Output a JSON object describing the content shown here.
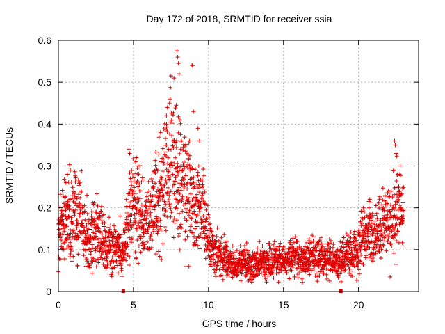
{
  "chart_data": {
    "type": "scatter",
    "title": "Day 172 of 2018, SRMTID for receiver ssia",
    "xlabel": "GPS time / hours",
    "ylabel": "SRMTID / TECUs",
    "xlim": [
      0,
      24
    ],
    "ylim": [
      0,
      0.6
    ],
    "x_ticks": [
      0,
      5,
      10,
      15,
      20
    ],
    "x_tick_labels": [
      "0",
      "5",
      "10",
      "15",
      "20"
    ],
    "y_ticks": [
      0,
      0.1,
      0.2,
      0.3,
      0.4,
      0.5,
      0.6
    ],
    "y_tick_labels": [
      "0",
      "0.1",
      "0.2",
      "0.3",
      "0.4",
      "0.5",
      "0.6"
    ],
    "grid": true,
    "marker": "+",
    "series_color": "#e00000",
    "trend": {
      "x": [
        0,
        0.5,
        1,
        1.5,
        2,
        2.5,
        3,
        3.5,
        4,
        4.3,
        4.6,
        5,
        5.5,
        6,
        6.5,
        7,
        7.5,
        8,
        8.5,
        9,
        9.5,
        10,
        10.5,
        11,
        11.5,
        12,
        12.5,
        13,
        13.5,
        14,
        14.5,
        15,
        15.5,
        16,
        16.5,
        17,
        17.5,
        18,
        18.5,
        19,
        19.5,
        20,
        20.5,
        21,
        21.5,
        22,
        22.5,
        23
      ],
      "y": [
        0.14,
        0.17,
        0.2,
        0.16,
        0.13,
        0.14,
        0.12,
        0.11,
        0.09,
        0.1,
        0.16,
        0.2,
        0.19,
        0.16,
        0.22,
        0.27,
        0.29,
        0.3,
        0.23,
        0.22,
        0.2,
        0.12,
        0.09,
        0.08,
        0.07,
        0.06,
        0.07,
        0.065,
        0.07,
        0.075,
        0.07,
        0.075,
        0.08,
        0.08,
        0.075,
        0.08,
        0.08,
        0.075,
        0.075,
        0.08,
        0.09,
        0.11,
        0.13,
        0.14,
        0.15,
        0.16,
        0.19,
        0.17
      ]
    },
    "spikes": [
      {
        "x": 4.1,
        "y": 0.18
      },
      {
        "x": 4.7,
        "y": 0.34
      },
      {
        "x": 4.75,
        "y": 0.33
      },
      {
        "x": 4.8,
        "y": 0.27
      },
      {
        "x": 5.2,
        "y": 0.32
      },
      {
        "x": 5.3,
        "y": 0.3
      },
      {
        "x": 6.8,
        "y": 0.38
      },
      {
        "x": 7.2,
        "y": 0.42
      },
      {
        "x": 7.4,
        "y": 0.45
      },
      {
        "x": 7.45,
        "y": 0.46
      },
      {
        "x": 7.5,
        "y": 0.515
      },
      {
        "x": 7.7,
        "y": 0.51
      },
      {
        "x": 7.9,
        "y": 0.575
      },
      {
        "x": 7.95,
        "y": 0.56
      },
      {
        "x": 8.0,
        "y": 0.545
      },
      {
        "x": 8.05,
        "y": 0.52
      },
      {
        "x": 7.85,
        "y": 0.445
      },
      {
        "x": 7.2,
        "y": 0.35
      },
      {
        "x": 8.1,
        "y": 0.41
      },
      {
        "x": 8.2,
        "y": 0.36
      },
      {
        "x": 8.9,
        "y": 0.54
      },
      {
        "x": 8.95,
        "y": 0.54
      },
      {
        "x": 9.0,
        "y": 0.43
      },
      {
        "x": 9.3,
        "y": 0.39
      },
      {
        "x": 9.4,
        "y": 0.36
      },
      {
        "x": 9.35,
        "y": 0.3
      },
      {
        "x": 0.6,
        "y": 0.28
      },
      {
        "x": 0.8,
        "y": 0.29
      },
      {
        "x": 0.5,
        "y": 0.26
      },
      {
        "x": 1.9,
        "y": 0.23
      },
      {
        "x": 22.4,
        "y": 0.36
      },
      {
        "x": 22.45,
        "y": 0.35
      },
      {
        "x": 22.5,
        "y": 0.33
      },
      {
        "x": 22.35,
        "y": 0.29
      },
      {
        "x": 22.6,
        "y": 0.28
      },
      {
        "x": 20.7,
        "y": 0.2
      },
      {
        "x": 8.5,
        "y": 0.06
      },
      {
        "x": 8.7,
        "y": 0.06
      },
      {
        "x": 0.1,
        "y": 0.17
      }
    ],
    "point_count": 2600,
    "seed": 172,
    "baseline_markers": [
      {
        "x": 4.3,
        "y": 0
      },
      {
        "x": 18.8,
        "y": 0
      }
    ]
  }
}
